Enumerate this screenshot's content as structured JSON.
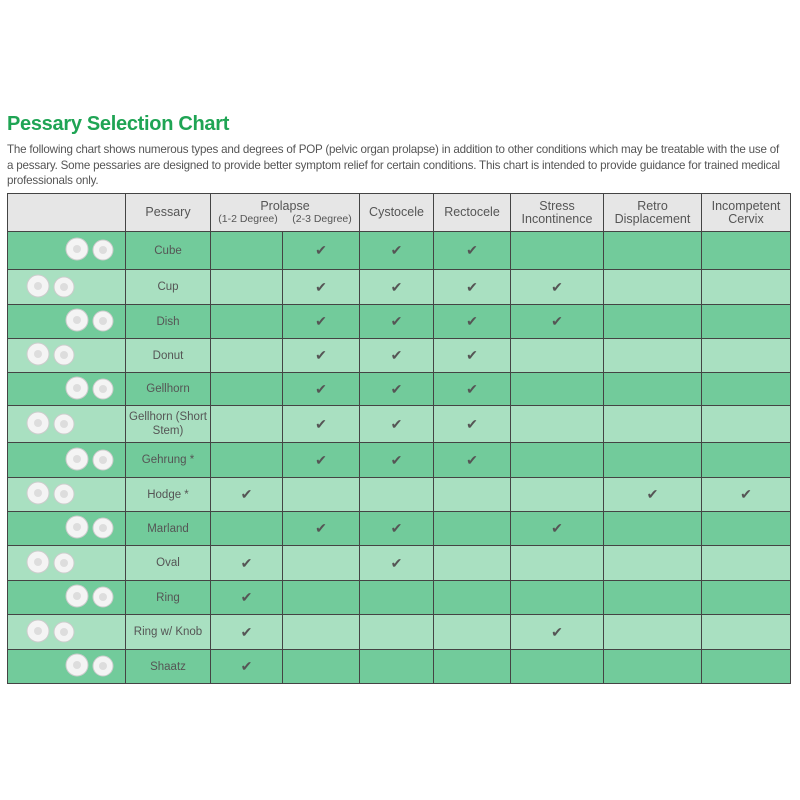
{
  "title": "Pessary Selection Chart",
  "intro": "The following chart shows numerous types and degrees of POP (pelvic organ prolapse) in addition to other conditions which may be treatable with the use of a pessary. Some pessaries are designed to provide better symptom relief for certain conditions. This chart is intended to provide guidance for trained medical professionals only.",
  "headers": {
    "pessary": "Pessary",
    "prolapse": "Prolapse",
    "p12": "(1-2 Degree)",
    "p23": "(2-3 Degree)",
    "cystocele": "Cystocele",
    "rectocele": "Rectocele",
    "stress": "Stress Incontinence",
    "retro": "Retro Displacement",
    "incompetent": "Incompetent Cervix"
  },
  "check_symbol": "✔",
  "colors": {
    "title": "#1fa454",
    "row_dark": "#72cb9b",
    "row_light": "#a9e0c1",
    "header": "#e6e6e6"
  },
  "rows": [
    {
      "name": "Cube",
      "checks": [
        0,
        1,
        1,
        1,
        0,
        0,
        0
      ]
    },
    {
      "name": "Cup",
      "checks": [
        0,
        1,
        1,
        1,
        1,
        0,
        0
      ]
    },
    {
      "name": "Dish",
      "checks": [
        0,
        1,
        1,
        1,
        1,
        0,
        0
      ]
    },
    {
      "name": "Donut",
      "checks": [
        0,
        1,
        1,
        1,
        0,
        0,
        0
      ]
    },
    {
      "name": "Gellhorn",
      "checks": [
        0,
        1,
        1,
        1,
        0,
        0,
        0
      ]
    },
    {
      "name": "Gellhorn (Short Stem)",
      "checks": [
        0,
        1,
        1,
        1,
        0,
        0,
        0
      ]
    },
    {
      "name": "Gehrung *",
      "checks": [
        0,
        1,
        1,
        1,
        0,
        0,
        0
      ]
    },
    {
      "name": "Hodge *",
      "checks": [
        1,
        0,
        0,
        0,
        0,
        1,
        1
      ]
    },
    {
      "name": "Marland",
      "checks": [
        0,
        1,
        1,
        0,
        1,
        0,
        0
      ]
    },
    {
      "name": "Oval",
      "checks": [
        1,
        0,
        1,
        0,
        0,
        0,
        0
      ]
    },
    {
      "name": "Ring",
      "checks": [
        1,
        0,
        0,
        0,
        0,
        0,
        0
      ]
    },
    {
      "name": "Ring w/ Knob",
      "checks": [
        1,
        0,
        0,
        0,
        1,
        0,
        0
      ]
    },
    {
      "name": "Shaatz",
      "checks": [
        1,
        0,
        0,
        0,
        0,
        0,
        0
      ]
    }
  ]
}
